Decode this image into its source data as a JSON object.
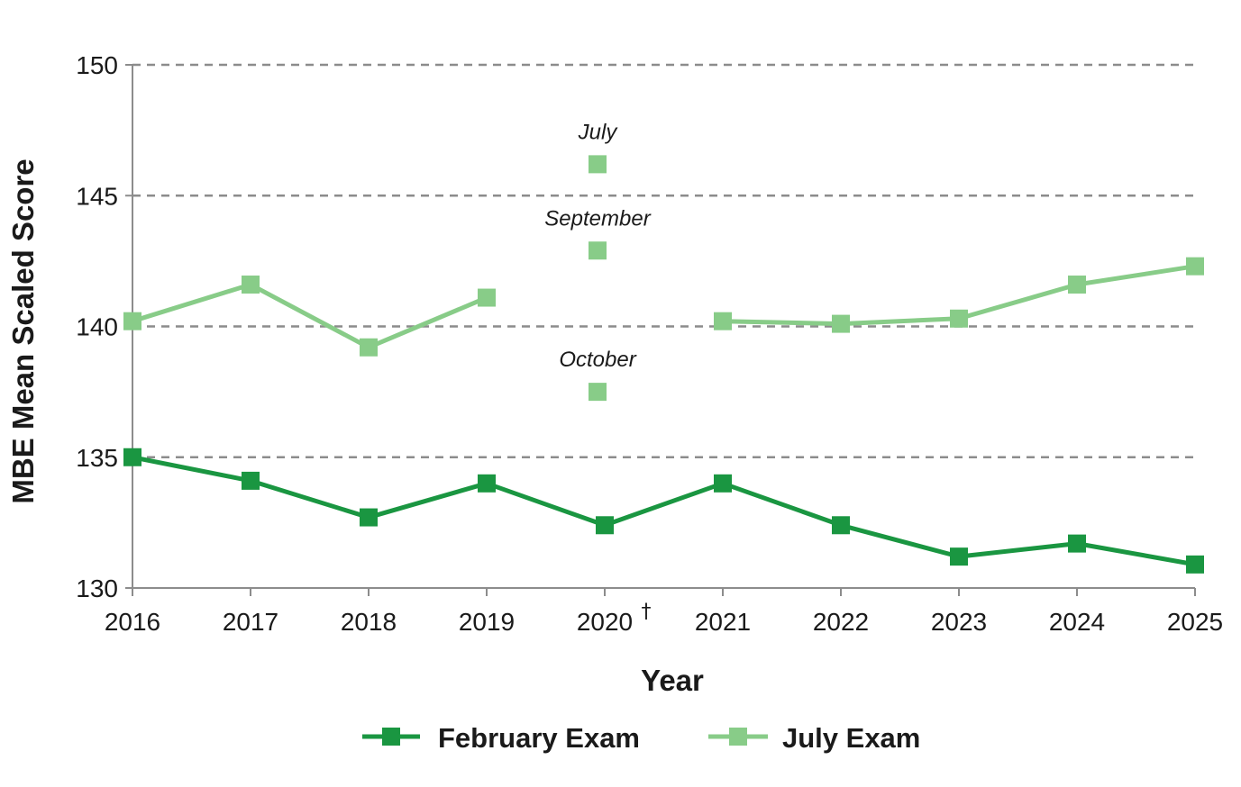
{
  "chart_data": {
    "type": "line",
    "title": "",
    "xlabel": "Year",
    "ylabel": "MBE Mean Scaled Score",
    "x": [
      "2016",
      "2017",
      "2018",
      "2019",
      "2020",
      "2021",
      "2022",
      "2023",
      "2024",
      "2025"
    ],
    "x_note_marks": {
      "2020": "†"
    },
    "ylim": [
      130,
      150
    ],
    "yticks": [
      130,
      135,
      140,
      145,
      150
    ],
    "grid": "horizontal dashed",
    "legend_position": "bottom",
    "series": [
      {
        "name": "February Exam",
        "color": "#1a9641",
        "values": [
          135.0,
          134.1,
          132.7,
          134.0,
          132.4,
          134.0,
          132.4,
          131.2,
          131.7,
          130.9
        ]
      },
      {
        "name": "July Exam",
        "color": "#88cc88",
        "values": [
          140.2,
          141.6,
          139.2,
          141.1,
          null,
          140.2,
          140.1,
          140.3,
          141.6,
          142.3
        ]
      }
    ],
    "annotations": [
      {
        "x": "2020",
        "y": 146.2,
        "label": "July"
      },
      {
        "x": "2020",
        "y": 142.9,
        "label": "September"
      },
      {
        "x": "2020",
        "y": 137.5,
        "label": "October"
      }
    ]
  }
}
